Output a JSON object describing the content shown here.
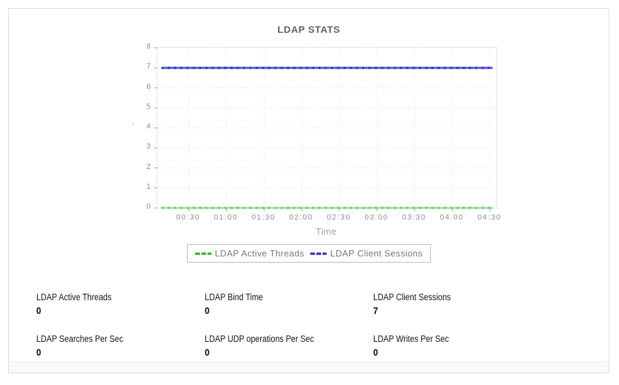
{
  "card": {
    "title": "LDAP STATS"
  },
  "chart_data": {
    "type": "line",
    "title": "LDAP STATS",
    "xlabel": "Time",
    "ylabel": "-",
    "ylim": [
      0,
      8
    ],
    "y_ticks": [
      0,
      1,
      2,
      3,
      4,
      5,
      6,
      7,
      8
    ],
    "x_tick_labels": [
      "00:30",
      "01:00",
      "01:30",
      "02:00",
      "02:30",
      "03:00",
      "03:30",
      "04:00",
      "04:30"
    ],
    "x_tick_minutes": [
      30,
      60,
      90,
      120,
      150,
      180,
      210,
      240,
      270
    ],
    "x_range_minutes": [
      5,
      275
    ],
    "grid": true,
    "legend_position": "bottom",
    "series": [
      {
        "name": "LDAP Active Threads",
        "value": 0,
        "x_start_min": 9,
        "x_end_min": 272,
        "point_interval_min": 5,
        "line_color": "#86d686",
        "marker_color": "#63c463",
        "legend_color": "#3cb43c",
        "line_width": 2.5
      },
      {
        "name": "LDAP Client Sessions",
        "value": 7,
        "x_start_min": 9,
        "x_end_min": 272,
        "point_interval_min": 5,
        "line_color": "#4d4dd4",
        "marker_color": "#2b2bbb",
        "legend_color": "#3737c8",
        "line_width": 3.5
      }
    ]
  },
  "stats": {
    "items": [
      {
        "label": "LDAP Active Threads",
        "value": "0"
      },
      {
        "label": "LDAP Bind Time",
        "value": "0"
      },
      {
        "label": "LDAP Client Sessions",
        "value": "7"
      },
      {
        "label": "LDAP Searches Per Sec",
        "value": "0"
      },
      {
        "label": "LDAP UDP operations Per Sec",
        "value": "0"
      },
      {
        "label": "LDAP Writes Per Sec",
        "value": "0"
      }
    ]
  }
}
